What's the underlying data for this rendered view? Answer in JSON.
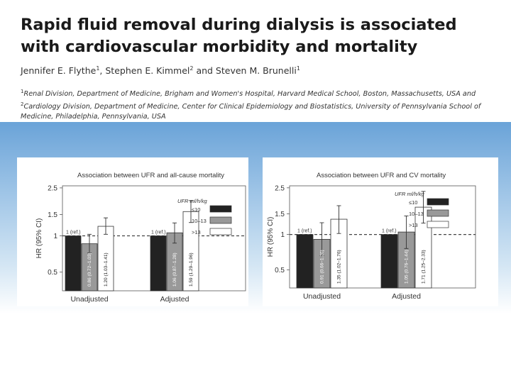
{
  "slide": {
    "title_line1": "Rapid fluid removal during dialysis is associated",
    "title_line2": "with cardiovascular morbidity and mortality",
    "authors": {
      "a1": "Jennifer E. Flythe",
      "a1_sup": "1",
      "sep1": ", Stephen E. Kimmel",
      "a2_sup": "2",
      "sep2": " and Steven M. Brunelli",
      "a3_sup": "1"
    },
    "affiliations": {
      "sup1": "1",
      "text1": "Renal Division, Department of Medicine, Brigham and Women's Hospital, Harvard Medical School, Boston, Massachusetts, USA and",
      "sup2": "2",
      "text2": "Cardiology Division, Department of Medicine, Center for Clinical Epidemiology and Biostatistics, University of Pennsylvania School of Medicine, Philadelphia, Pennsylvania, USA"
    }
  },
  "colors": {
    "bar_low": "#222222",
    "bar_mid": "#999999",
    "bar_high": "#ffffff",
    "band_top": "#6aa3d8"
  },
  "chart_data": [
    {
      "type": "bar",
      "title": "Association between UFR and all-cause mortality",
      "ylabel": "HR (95% CI)",
      "y_scale": "log",
      "ylim": [
        0.35,
        2.6
      ],
      "y_ticks": [
        0.5,
        1,
        1.5,
        2.5
      ],
      "y_tick_labels": [
        "0.5",
        "1",
        "1.5",
        "2.5"
      ],
      "reference_line": 1,
      "categories": [
        "Unadjusted",
        "Adjusted"
      ],
      "legend_title": "UFR ml/h/kg",
      "legend_placement": "top-right",
      "series": [
        {
          "name": "≤10",
          "values": [
            1,
            1
          ],
          "ci_low": [
            null,
            null
          ],
          "ci_high": [
            null,
            null
          ],
          "value_labels": [
            "1 (ref.)",
            "1 (ref.)"
          ]
        },
        {
          "name": "10–13",
          "values": [
            0.86,
            1.06
          ],
          "ci_low": [
            0.72,
            0.87
          ],
          "ci_high": [
            1.03,
            1.28
          ],
          "value_labels": [
            "0.86 (0.72–1.03)",
            "1.06 (0.87–1.28)"
          ]
        },
        {
          "name": ">13",
          "values": [
            1.2,
            1.59
          ],
          "ci_low": [
            1.03,
            1.29
          ],
          "ci_high": [
            1.41,
            1.96
          ],
          "value_labels": [
            "1.20 (1.03–1.41)",
            "1.59 (1.29–1.96)"
          ]
        }
      ]
    },
    {
      "type": "bar",
      "title": "Association between UFR and CV mortality",
      "ylabel": "HR (95% CI)",
      "y_scale": "log",
      "ylim": [
        0.35,
        2.6
      ],
      "y_ticks": [
        0.5,
        1,
        1.5,
        2.5
      ],
      "y_tick_labels": [
        "0.5",
        "1",
        "1.5",
        "2.5"
      ],
      "reference_line": 1,
      "categories": [
        "Unadjusted",
        "Adjusted"
      ],
      "legend_title": "UFR ml/h/kg",
      "legend_placement": "top-right",
      "series": [
        {
          "name": "≤10",
          "values": [
            1,
            1
          ],
          "ci_low": [
            null,
            null
          ],
          "ci_high": [
            null,
            null
          ],
          "value_labels": [
            "1 (ref.)",
            "1 (ref.)"
          ]
        },
        {
          "name": "10–13",
          "values": [
            0.91,
            1.05
          ],
          "ci_low": [
            0.66,
            0.76
          ],
          "ci_high": [
            1.26,
            1.44
          ],
          "value_labels": [
            "0.91 (0.66–1.26)",
            "1.05 (0.76–1.44)"
          ]
        },
        {
          "name": ">13",
          "values": [
            1.35,
            1.71
          ],
          "ci_low": [
            1.02,
            1.25
          ],
          "ci_high": [
            1.76,
            2.33
          ],
          "value_labels": [
            "1.35 (1.02–1.76)",
            "1.71 (1.25–2.33)"
          ]
        }
      ]
    }
  ]
}
